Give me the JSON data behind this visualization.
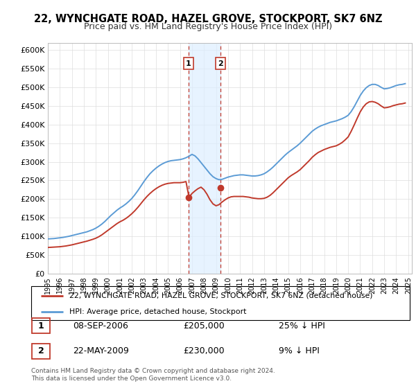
{
  "title": "22, WYNCHGATE ROAD, HAZEL GROVE, STOCKPORT, SK7 6NZ",
  "subtitle": "Price paid vs. HM Land Registry's House Price Index (HPI)",
  "legend_line1": "22, WYNCHGATE ROAD, HAZEL GROVE, STOCKPORT, SK7 6NZ (detached house)",
  "legend_line2": "HPI: Average price, detached house, Stockport",
  "transaction1_date": "08-SEP-2006",
  "transaction1_price": 205000,
  "transaction1_pct": "25% ↓ HPI",
  "transaction1_year": 2006.69,
  "transaction2_date": "22-MAY-2009",
  "transaction2_price": 230000,
  "transaction2_pct": "9% ↓ HPI",
  "transaction2_year": 2009.39,
  "footnote1": "Contains HM Land Registry data © Crown copyright and database right 2024.",
  "footnote2": "This data is licensed under the Open Government Licence v3.0.",
  "ylim": [
    0,
    620000
  ],
  "ytick_values": [
    0,
    50000,
    100000,
    150000,
    200000,
    250000,
    300000,
    350000,
    400000,
    450000,
    500000,
    550000,
    600000
  ],
  "ytick_labels": [
    "£0",
    "£50K",
    "£100K",
    "£150K",
    "£200K",
    "£250K",
    "£300K",
    "£350K",
    "£400K",
    "£450K",
    "£500K",
    "£550K",
    "£600K"
  ],
  "xlim_start": 1995,
  "xlim_end": 2025.3,
  "hpi_color": "#5b9bd5",
  "property_color": "#c0392b",
  "shade_color": "#ddeeff",
  "grid_color": "#dddddd",
  "hpi_years": [
    1995.0,
    1995.25,
    1995.5,
    1995.75,
    1996.0,
    1996.25,
    1996.5,
    1996.75,
    1997.0,
    1997.25,
    1997.5,
    1997.75,
    1998.0,
    1998.25,
    1998.5,
    1998.75,
    1999.0,
    1999.25,
    1999.5,
    1999.75,
    2000.0,
    2000.25,
    2000.5,
    2000.75,
    2001.0,
    2001.25,
    2001.5,
    2001.75,
    2002.0,
    2002.25,
    2002.5,
    2002.75,
    2003.0,
    2003.25,
    2003.5,
    2003.75,
    2004.0,
    2004.25,
    2004.5,
    2004.75,
    2005.0,
    2005.25,
    2005.5,
    2005.75,
    2006.0,
    2006.25,
    2006.5,
    2006.75,
    2007.0,
    2007.25,
    2007.5,
    2007.75,
    2008.0,
    2008.25,
    2008.5,
    2008.75,
    2009.0,
    2009.25,
    2009.5,
    2009.75,
    2010.0,
    2010.25,
    2010.5,
    2010.75,
    2011.0,
    2011.25,
    2011.5,
    2011.75,
    2012.0,
    2012.25,
    2012.5,
    2012.75,
    2013.0,
    2013.25,
    2013.5,
    2013.75,
    2014.0,
    2014.25,
    2014.5,
    2014.75,
    2015.0,
    2015.25,
    2015.5,
    2015.75,
    2016.0,
    2016.25,
    2016.5,
    2016.75,
    2017.0,
    2017.25,
    2017.5,
    2017.75,
    2018.0,
    2018.25,
    2018.5,
    2018.75,
    2019.0,
    2019.25,
    2019.5,
    2019.75,
    2020.0,
    2020.25,
    2020.5,
    2020.75,
    2021.0,
    2021.25,
    2021.5,
    2021.75,
    2022.0,
    2022.25,
    2022.5,
    2022.75,
    2023.0,
    2023.25,
    2023.5,
    2023.75,
    2024.0,
    2024.25,
    2024.5,
    2024.75
  ],
  "hpi_values": [
    93000,
    93500,
    94000,
    95000,
    96000,
    97000,
    98500,
    100000,
    102000,
    104000,
    106000,
    108000,
    110000,
    112000,
    115000,
    118000,
    122000,
    127000,
    133000,
    140000,
    148000,
    156000,
    163000,
    170000,
    176000,
    181000,
    187000,
    194000,
    202000,
    212000,
    223000,
    235000,
    247000,
    258000,
    268000,
    276000,
    283000,
    289000,
    294000,
    298000,
    301000,
    303000,
    304000,
    305000,
    306000,
    308000,
    311000,
    315000,
    320000,
    316000,
    308000,
    298000,
    288000,
    278000,
    268000,
    260000,
    255000,
    252000,
    253000,
    256000,
    259000,
    261000,
    263000,
    264000,
    265000,
    265000,
    264000,
    263000,
    262000,
    262000,
    263000,
    265000,
    268000,
    273000,
    279000,
    286000,
    294000,
    302000,
    310000,
    318000,
    325000,
    331000,
    337000,
    343000,
    350000,
    358000,
    366000,
    374000,
    382000,
    388000,
    393000,
    397000,
    400000,
    403000,
    406000,
    408000,
    410000,
    413000,
    416000,
    420000,
    425000,
    435000,
    448000,
    463000,
    478000,
    490000,
    499000,
    505000,
    508000,
    508000,
    505000,
    500000,
    496000,
    497000,
    499000,
    502000,
    505000,
    507000,
    508000,
    510000
  ],
  "prop_years": [
    1995.0,
    1995.25,
    1995.5,
    1995.75,
    1996.0,
    1996.25,
    1996.5,
    1996.75,
    1997.0,
    1997.25,
    1997.5,
    1997.75,
    1998.0,
    1998.25,
    1998.5,
    1998.75,
    1999.0,
    1999.25,
    1999.5,
    1999.75,
    2000.0,
    2000.25,
    2000.5,
    2000.75,
    2001.0,
    2001.25,
    2001.5,
    2001.75,
    2002.0,
    2002.25,
    2002.5,
    2002.75,
    2003.0,
    2003.25,
    2003.5,
    2003.75,
    2004.0,
    2004.25,
    2004.5,
    2004.75,
    2005.0,
    2005.25,
    2005.5,
    2005.75,
    2006.0,
    2006.25,
    2006.5,
    2006.75,
    2007.0,
    2007.25,
    2007.5,
    2007.75,
    2008.0,
    2008.25,
    2008.5,
    2008.75,
    2009.0,
    2009.25,
    2009.5,
    2009.75,
    2010.0,
    2010.25,
    2010.5,
    2010.75,
    2011.0,
    2011.25,
    2011.5,
    2011.75,
    2012.0,
    2012.25,
    2012.5,
    2012.75,
    2013.0,
    2013.25,
    2013.5,
    2013.75,
    2014.0,
    2014.25,
    2014.5,
    2014.75,
    2015.0,
    2015.25,
    2015.5,
    2015.75,
    2016.0,
    2016.25,
    2016.5,
    2016.75,
    2017.0,
    2017.25,
    2017.5,
    2017.75,
    2018.0,
    2018.25,
    2018.5,
    2018.75,
    2019.0,
    2019.25,
    2019.5,
    2019.75,
    2020.0,
    2020.25,
    2020.5,
    2020.75,
    2021.0,
    2021.25,
    2021.5,
    2021.75,
    2022.0,
    2022.25,
    2022.5,
    2022.75,
    2023.0,
    2023.25,
    2023.5,
    2023.75,
    2024.0,
    2024.25,
    2024.5,
    2024.75
  ],
  "prop_values": [
    70000,
    70500,
    71000,
    71500,
    72000,
    73000,
    74000,
    75500,
    77000,
    79000,
    81000,
    83000,
    85000,
    87000,
    89500,
    92000,
    95000,
    99000,
    104000,
    110000,
    116000,
    122000,
    128000,
    134000,
    139000,
    143000,
    148000,
    154000,
    161000,
    169000,
    178000,
    188000,
    198000,
    207000,
    215000,
    222000,
    228000,
    233000,
    237000,
    240000,
    242000,
    243000,
    244000,
    244000,
    244000,
    245000,
    247000,
    205000,
    215000,
    222000,
    228000,
    232000,
    225000,
    213000,
    198000,
    187000,
    182000,
    185000,
    192000,
    198000,
    203000,
    206000,
    207000,
    207000,
    207000,
    207000,
    206000,
    205000,
    203000,
    202000,
    201000,
    201000,
    202000,
    205000,
    210000,
    217000,
    225000,
    233000,
    241000,
    249000,
    257000,
    263000,
    268000,
    273000,
    279000,
    287000,
    295000,
    303000,
    312000,
    319000,
    325000,
    329000,
    333000,
    336000,
    339000,
    341000,
    343000,
    347000,
    352000,
    359000,
    367000,
    382000,
    399000,
    417000,
    434000,
    447000,
    456000,
    461000,
    462000,
    460000,
    456000,
    450000,
    445000,
    446000,
    448000,
    451000,
    453000,
    455000,
    456000,
    458000
  ]
}
